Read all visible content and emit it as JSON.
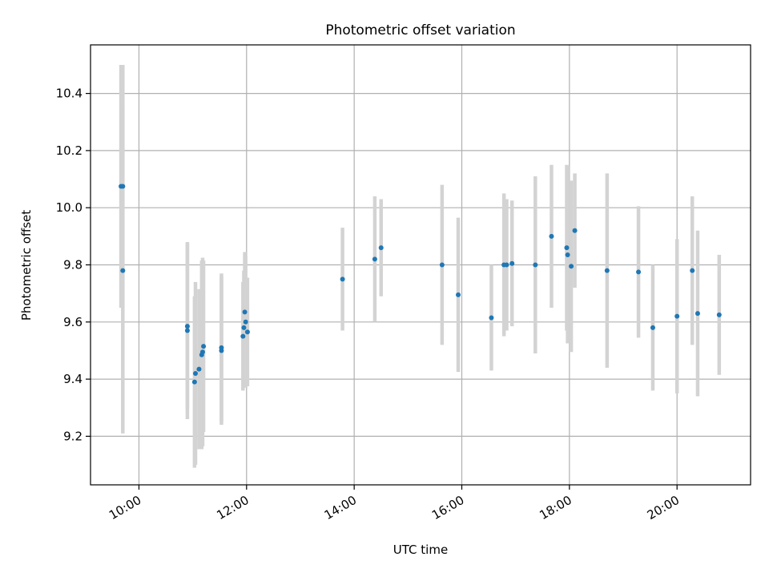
{
  "chart_data": {
    "type": "scatter",
    "title": "Photometric offset variation",
    "xlabel": "UTC time",
    "ylabel": "Photometric offset",
    "xlim": [
      "09:06",
      "21:22"
    ],
    "ylim": [
      9.03,
      10.57
    ],
    "x_ticks": [
      "10:00",
      "12:00",
      "14:00",
      "16:00",
      "18:00",
      "20:00"
    ],
    "y_ticks": [
      "9.2",
      "9.4",
      "9.6",
      "9.8",
      "10.0",
      "10.2",
      "10.4"
    ],
    "grid": true,
    "legend": "none",
    "colors": {
      "points": "#1f77b4",
      "error_bars": "#d3d3d3"
    },
    "points": [
      {
        "x": "09:40",
        "y": 10.075,
        "err": 0.425
      },
      {
        "x": "09:42",
        "y": 10.075,
        "err": 0.425
      },
      {
        "x": "09:42",
        "y": 9.78,
        "err": 0.57
      },
      {
        "x": "10:54",
        "y": 9.585,
        "err": 0.29
      },
      {
        "x": "10:54",
        "y": 9.57,
        "err": 0.31
      },
      {
        "x": "11:02",
        "y": 9.39,
        "err": 0.3
      },
      {
        "x": "11:03",
        "y": 9.42,
        "err": 0.32
      },
      {
        "x": "11:07",
        "y": 9.435,
        "err": 0.28
      },
      {
        "x": "11:10",
        "y": 9.485,
        "err": 0.33
      },
      {
        "x": "11:11",
        "y": 9.495,
        "err": 0.33
      },
      {
        "x": "11:12",
        "y": 9.515,
        "err": 0.3
      },
      {
        "x": "11:32",
        "y": 9.5,
        "err": 0.26
      },
      {
        "x": "11:32",
        "y": 9.51,
        "err": 0.26
      },
      {
        "x": "11:56",
        "y": 9.55,
        "err": 0.19
      },
      {
        "x": "11:57",
        "y": 9.58,
        "err": 0.2
      },
      {
        "x": "11:58",
        "y": 9.635,
        "err": 0.21
      },
      {
        "x": "11:59",
        "y": 9.6,
        "err": 0.23
      },
      {
        "x": "12:01",
        "y": 9.565,
        "err": 0.19
      },
      {
        "x": "13:47",
        "y": 9.75,
        "err": 0.18
      },
      {
        "x": "14:23",
        "y": 9.82,
        "err": 0.22
      },
      {
        "x": "14:30",
        "y": 9.86,
        "err": 0.17
      },
      {
        "x": "15:38",
        "y": 9.8,
        "err": 0.28
      },
      {
        "x": "15:56",
        "y": 9.695,
        "err": 0.27
      },
      {
        "x": "16:33",
        "y": 9.615,
        "err": 0.185
      },
      {
        "x": "16:47",
        "y": 9.8,
        "err": 0.25
      },
      {
        "x": "16:50",
        "y": 9.8,
        "err": 0.23
      },
      {
        "x": "16:56",
        "y": 9.805,
        "err": 0.22
      },
      {
        "x": "17:22",
        "y": 9.8,
        "err": 0.31
      },
      {
        "x": "17:40",
        "y": 9.9,
        "err": 0.25
      },
      {
        "x": "17:57",
        "y": 9.86,
        "err": 0.29
      },
      {
        "x": "17:58",
        "y": 9.835,
        "err": 0.31
      },
      {
        "x": "18:02",
        "y": 9.795,
        "err": 0.3
      },
      {
        "x": "18:06",
        "y": 9.92,
        "err": 0.2
      },
      {
        "x": "18:42",
        "y": 9.78,
        "err": 0.34
      },
      {
        "x": "19:17",
        "y": 9.775,
        "err": 0.23
      },
      {
        "x": "19:33",
        "y": 9.58,
        "err": 0.22
      },
      {
        "x": "20:00",
        "y": 9.62,
        "err": 0.27
      },
      {
        "x": "20:17",
        "y": 9.78,
        "err": 0.26
      },
      {
        "x": "20:23",
        "y": 9.63,
        "err": 0.29
      },
      {
        "x": "20:47",
        "y": 9.625,
        "err": 0.21
      }
    ]
  }
}
